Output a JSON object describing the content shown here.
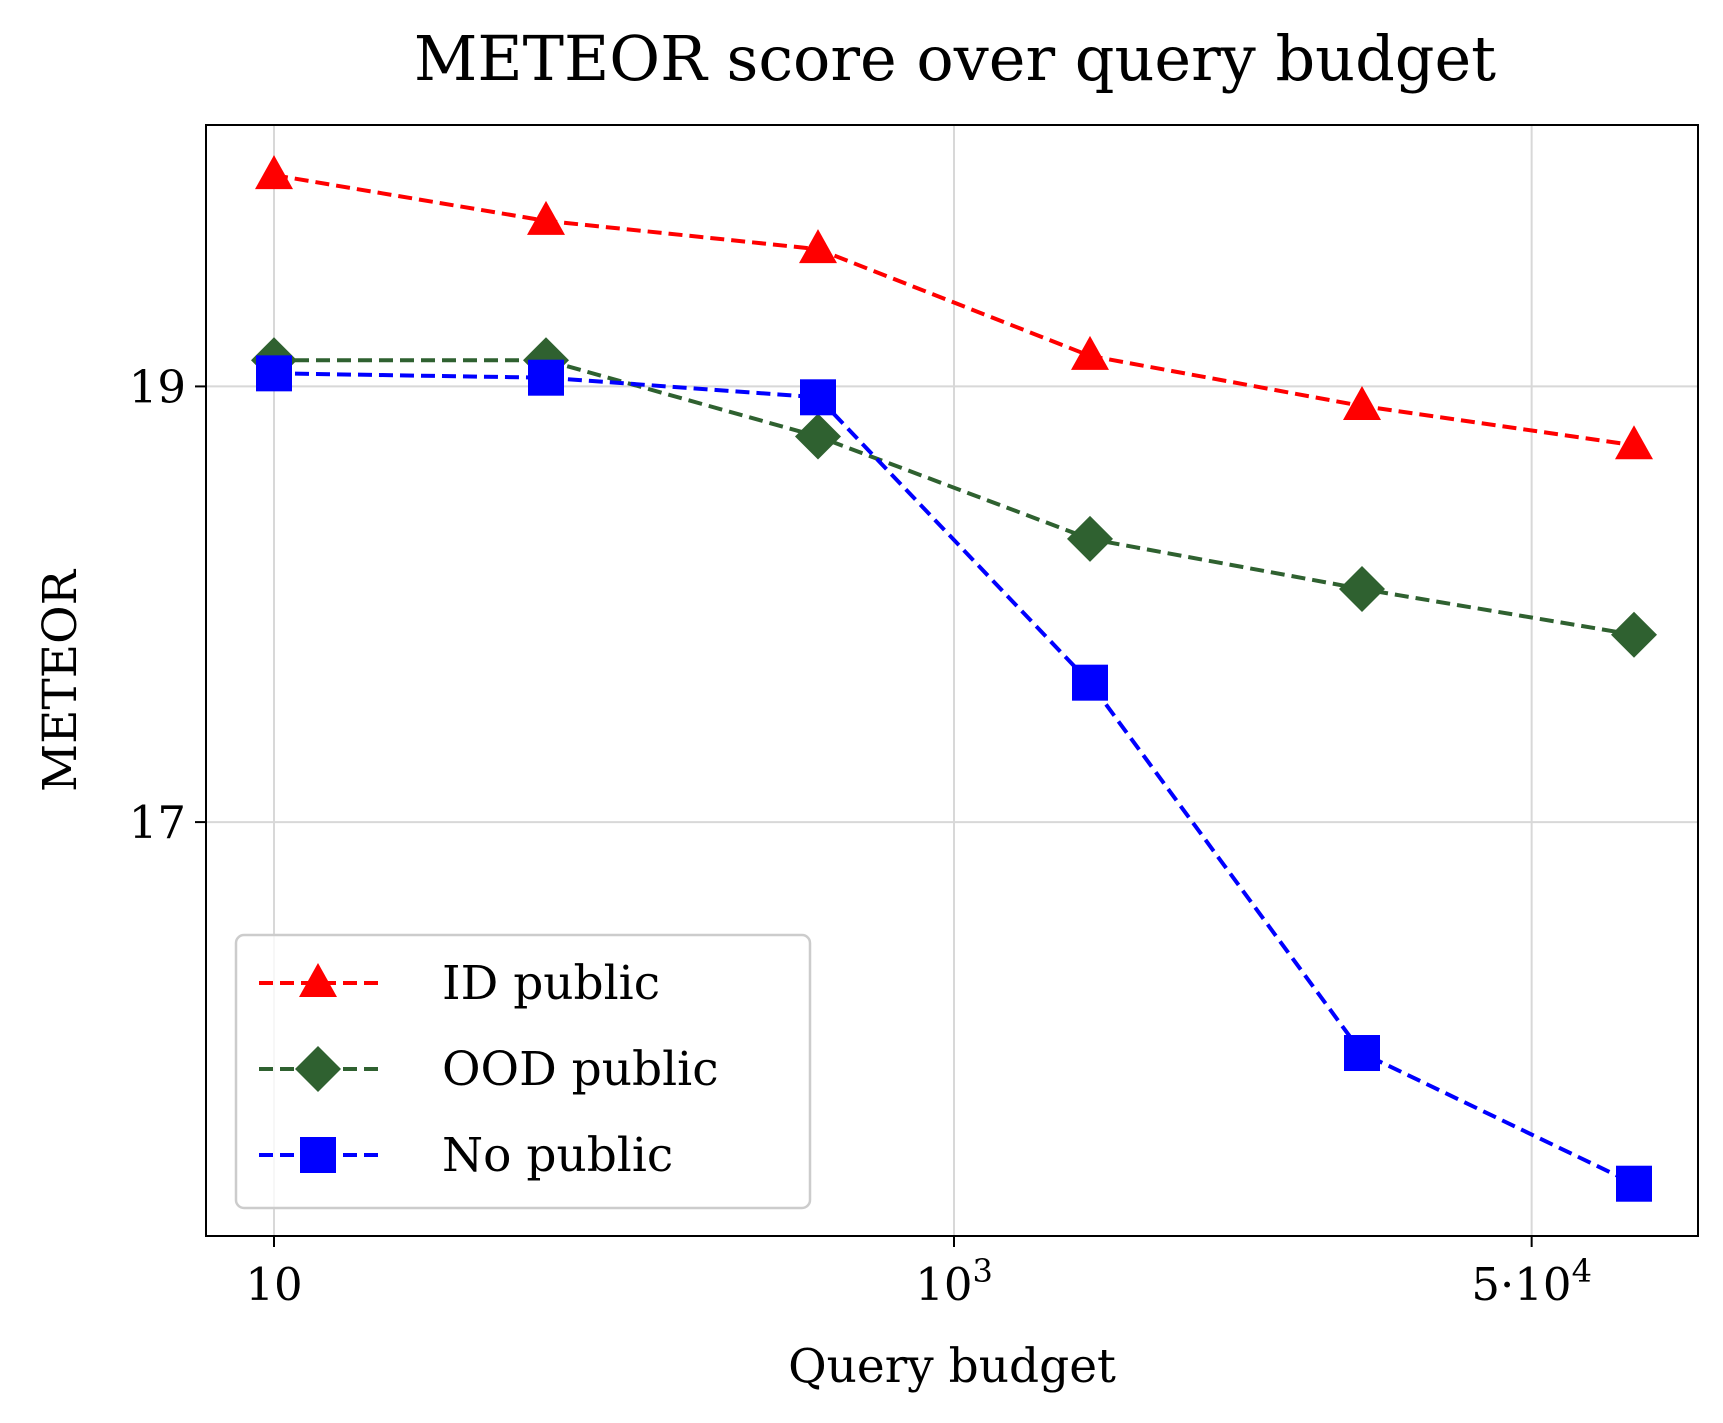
{
  "chart_data": {
    "type": "line",
    "title": "METEOR score over query budget",
    "xlabel": "Query budget",
    "ylabel": "METEOR",
    "x_scale": "log",
    "x": [
      10,
      100,
      1000,
      10000,
      50000,
      100000
    ],
    "x_ticks": [
      {
        "value": 10,
        "label": "10"
      },
      {
        "value": 1000,
        "label": "10",
        "sup": "3"
      },
      {
        "value": 50000,
        "label": "5·10",
        "sup": "4"
      }
    ],
    "y_ticks": [
      {
        "value": 17,
        "label": "17"
      },
      {
        "value": 19,
        "label": "19"
      }
    ],
    "ylim": [
      15.1,
      20.2
    ],
    "grid": true,
    "legend_position": "lower-left",
    "series": [
      {
        "name": "ID public",
        "color": "#ff0000",
        "marker": "triangle",
        "values": [
          19.97,
          19.76,
          19.63,
          19.14,
          18.91,
          18.73
        ]
      },
      {
        "name": "OOD public",
        "color": "#2f6130",
        "marker": "diamond",
        "values": [
          19.12,
          19.12,
          18.77,
          18.3,
          18.07,
          17.86
        ]
      },
      {
        "name": "No public",
        "color": "#0000ff",
        "marker": "square",
        "values": [
          19.06,
          19.04,
          18.95,
          17.64,
          15.94,
          15.34
        ]
      }
    ]
  }
}
